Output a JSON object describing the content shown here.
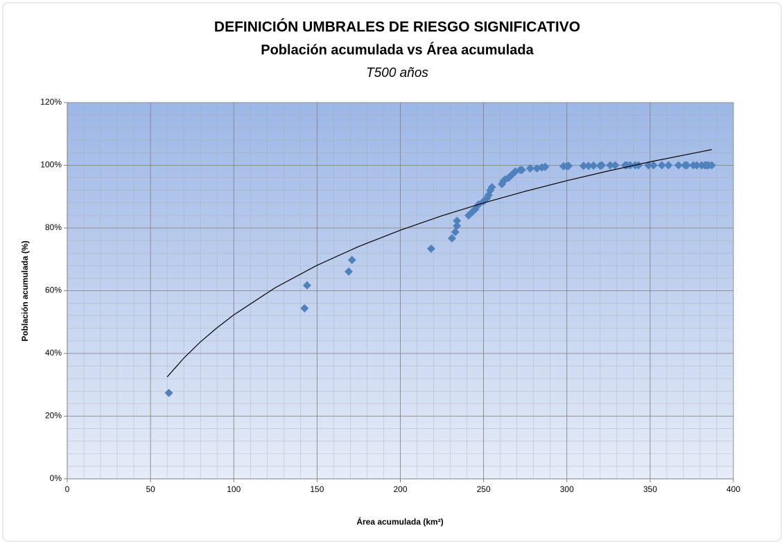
{
  "chart_data": {
    "type": "scatter",
    "title": "DEFINICIÓN UMBRALES DE RIESGO SIGNIFICATIVO",
    "subtitle": "Población acumulada vs Área acumulada",
    "subtitle2": "T500 años",
    "x_label": "Área acumulada (km²)",
    "y_label": "Población acumulada (%)",
    "xlim": [
      0,
      400
    ],
    "ylim": [
      0,
      120
    ],
    "xticks": [
      0,
      50,
      100,
      150,
      200,
      250,
      300,
      350,
      400
    ],
    "yticks": [
      {
        "value": 0,
        "label": "0%"
      },
      {
        "value": 20,
        "label": "20%"
      },
      {
        "value": 40,
        "label": "40%"
      },
      {
        "value": 60,
        "label": "60%"
      },
      {
        "value": 80,
        "label": "80%"
      },
      {
        "value": 100,
        "label": "100%"
      },
      {
        "value": 120,
        "label": "120%"
      }
    ],
    "grid": true,
    "minor_grid": {
      "x": 10,
      "y": 4
    },
    "series": [
      {
        "type": "scatter",
        "color": "#4f81bd",
        "x": [
          61,
          142.5,
          144,
          169,
          171,
          218.5,
          231,
          233,
          234,
          234,
          241,
          243,
          245,
          247,
          250,
          252,
          253,
          254,
          255,
          261,
          262,
          263,
          265,
          267,
          269,
          272,
          273,
          278,
          282,
          285,
          287,
          298,
          300,
          301,
          310,
          313,
          316,
          320,
          321,
          326,
          329,
          335,
          336,
          338,
          341,
          343,
          349,
          352,
          357,
          361,
          367,
          371,
          372,
          376,
          378,
          381,
          383,
          384,
          385,
          387
        ],
        "values": [
          27.4,
          54.4,
          61.7,
          66.1,
          69.8,
          73.4,
          76.7,
          78.7,
          80.7,
          82.3,
          84,
          85,
          86,
          87.5,
          88.5,
          89.5,
          90.5,
          92,
          93,
          94,
          95,
          95.5,
          96,
          97,
          98,
          98.5,
          98.5,
          99,
          99,
          99.3,
          99.5,
          99.7,
          99.7,
          99.8,
          99.8,
          99.8,
          99.9,
          99.9,
          100,
          100,
          100,
          100,
          100,
          100,
          100,
          100,
          100,
          100,
          100,
          100,
          100,
          100,
          100,
          100,
          100,
          100,
          100,
          100,
          100,
          100
        ]
      },
      {
        "type": "line",
        "color": "#000000",
        "x": [
          60,
          70,
          80,
          90,
          100,
          125,
          150,
          175,
          200,
          225,
          250,
          275,
          300,
          325,
          350,
          387
        ],
        "values": [
          32.5,
          38.5,
          43.7,
          48.2,
          52.3,
          61.0,
          68.1,
          74.1,
          79.3,
          83.9,
          88.0,
          91.7,
          95.1,
          98.2,
          101.1,
          105.0
        ]
      }
    ]
  }
}
